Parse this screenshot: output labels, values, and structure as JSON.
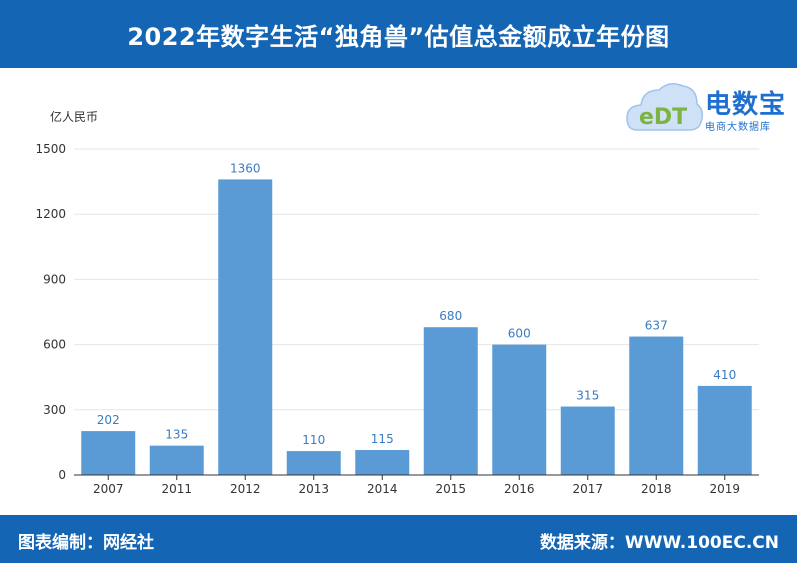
{
  "header": {
    "title": "2022年数字生活“独角兽”估值总金额成立年份图"
  },
  "logo": {
    "name": "电数宝",
    "subtitle": "电商大数据库",
    "mark_text": "eDT"
  },
  "footer": {
    "left_text": "图表编制：网经社",
    "right_text": "数据来源：WWW.100EC.CN"
  },
  "chart_data": {
    "type": "bar",
    "title": "",
    "xlabel": "",
    "ylabel": "亿人民币",
    "categories": [
      "2007",
      "2011",
      "2012",
      "2013",
      "2014",
      "2015",
      "2016",
      "2017",
      "2018",
      "2019"
    ],
    "values": [
      202,
      135,
      1360,
      110,
      115,
      680,
      600,
      315,
      637,
      410
    ],
    "ylim": [
      0,
      1500
    ],
    "yticks": [
      0,
      300,
      600,
      900,
      1200,
      1500
    ],
    "grid": true,
    "bar_color": "#5b9bd5",
    "label_color": "#3a7cc0"
  }
}
